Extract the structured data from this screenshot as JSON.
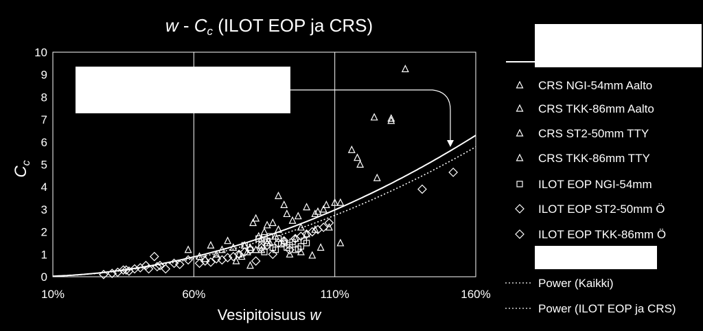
{
  "chart_data": {
    "type": "scatter",
    "title": {
      "italic_w": "w",
      "dash": " - ",
      "c": "C",
      "sub": "c",
      "rest": " (ILOT EOP ja CRS)"
    },
    "xlabel": {
      "text": "Vesipitoisuus ",
      "italic": "w"
    },
    "ylabel": {
      "c": "C",
      "sub": "c"
    },
    "xlim": [
      0.1,
      1.6
    ],
    "ylim": [
      0,
      10
    ],
    "x_ticks": [
      0.1,
      0.6,
      1.1,
      1.6
    ],
    "x_tick_labels": [
      "10%",
      "60%",
      "110%",
      "160%"
    ],
    "y_ticks": [
      0,
      1,
      2,
      3,
      4,
      5,
      6,
      7,
      8,
      9,
      10
    ],
    "y_tick_labels": [
      "0",
      "1",
      "2",
      "3",
      "4",
      "5",
      "6",
      "7",
      "8",
      "9",
      "10"
    ],
    "grid": "vertical",
    "legend_position": "right",
    "legend": [
      {
        "label": "CRS NGI-54mm Aalto",
        "marker": "triangle"
      },
      {
        "label": "CRS TKK-86mm Aalto",
        "marker": "triangle"
      },
      {
        "label": "CRS ST2-50mm TTY",
        "marker": "triangle"
      },
      {
        "label": "CRS TKK-86mm TTY",
        "marker": "triangle"
      },
      {
        "label": "ILOT EOP NGI-54mm",
        "marker": "square"
      },
      {
        "label": "ILOT EOP ST2-50mm Ö",
        "marker": "diamond"
      },
      {
        "label": "ILOT EOP TKK-86mm Ö",
        "marker": "diamond"
      },
      {
        "label": "Power (Kaikki)",
        "marker": "dotted-line"
      },
      {
        "label": "Power (ILOT EOP ja CRS)",
        "marker": "dotted-line"
      }
    ],
    "series": [
      {
        "marker": "triangle",
        "x": [
          1.35,
          1.3,
          1.3,
          1.25,
          1.16,
          1.18,
          1.19,
          1.24,
          1.12,
          1.1,
          1.07,
          1.06,
          1.04,
          1.03,
          1.0,
          0.98,
          0.97,
          0.95,
          0.93,
          0.92,
          0.9,
          0.89,
          0.88,
          0.87,
          0.86,
          0.85,
          0.84,
          0.83,
          0.82,
          0.81,
          0.8,
          0.79,
          0.78,
          0.77,
          0.76,
          0.75,
          0.74,
          0.72,
          0.7,
          0.68,
          0.66,
          0.64,
          0.62,
          0.58,
          1.02,
          1.03,
          1.12,
          1.08,
          1.05,
          1.0,
          0.98,
          0.96,
          0.94,
          0.92,
          0.9,
          0.86,
          0.84,
          0.82,
          0.8
        ],
        "y": [
          9.25,
          7.05,
          6.95,
          4.4,
          5.65,
          5.3,
          5.0,
          7.1,
          3.3,
          3.3,
          3.2,
          3.0,
          2.9,
          2.8,
          3.1,
          2.2,
          2.7,
          2.5,
          2.8,
          3.2,
          3.6,
          1.8,
          2.4,
          1.5,
          2.3,
          2.0,
          1.2,
          1.8,
          2.6,
          2.4,
          1.3,
          1.1,
          1.4,
          0.9,
          1.0,
          0.7,
          1.3,
          1.6,
          1.2,
          1.0,
          1.4,
          0.8,
          0.9,
          1.2,
          0.95,
          2.1,
          1.5,
          2.2,
          1.3,
          1.9,
          1.1,
          1.7,
          1.0,
          1.6,
          2.1,
          1.5,
          1.7,
          1.2,
          0.5
        ]
      },
      {
        "marker": "square",
        "x": [
          0.84,
          0.86,
          0.88,
          0.9,
          0.92,
          0.94,
          0.96,
          0.98,
          1.0,
          0.85,
          0.87,
          0.89,
          0.91,
          0.93,
          0.95,
          0.97,
          0.99,
          0.83,
          0.8,
          0.78
        ],
        "y": [
          1.4,
          1.6,
          1.3,
          1.7,
          1.5,
          1.4,
          1.2,
          1.35,
          1.5,
          1.1,
          1.8,
          1.2,
          1.45,
          1.3,
          1.55,
          1.25,
          1.6,
          1.7,
          1.2,
          1.4
        ]
      },
      {
        "marker": "diamond",
        "x": [
          0.28,
          0.31,
          0.33,
          0.35,
          0.37,
          0.39,
          0.41,
          0.43,
          0.46,
          0.48,
          0.5,
          0.53,
          0.55,
          0.58,
          0.62,
          0.64,
          0.66,
          0.68,
          0.7,
          0.72,
          0.74,
          0.76,
          0.78,
          0.8,
          0.82,
          0.84,
          0.86,
          0.88,
          0.9,
          0.92,
          0.94,
          0.96,
          0.98,
          1.0,
          1.02,
          1.04,
          1.06,
          1.08,
          1.41,
          1.52,
          0.44,
          0.47,
          0.36
        ],
        "y": [
          0.1,
          0.15,
          0.2,
          0.3,
          0.25,
          0.35,
          0.4,
          0.5,
          0.9,
          0.5,
          0.35,
          0.6,
          0.55,
          0.75,
          0.6,
          0.7,
          0.65,
          0.8,
          0.75,
          0.85,
          0.9,
          1.0,
          1.1,
          1.2,
          0.7,
          1.3,
          1.4,
          1.0,
          1.5,
          1.6,
          1.2,
          1.7,
          1.8,
          1.9,
          2.0,
          2.1,
          2.2,
          2.4,
          3.9,
          4.65,
          0.35,
          0.45,
          0.3
        ]
      }
    ],
    "trendlines": [
      {
        "name": "Power (Kaikki)",
        "style": "solid",
        "a": 2.46,
        "b": 2.0
      },
      {
        "name": "Power (ILOT EOP ja CRS)",
        "style": "dotted",
        "a": 2.26,
        "b": 2.0
      }
    ]
  }
}
